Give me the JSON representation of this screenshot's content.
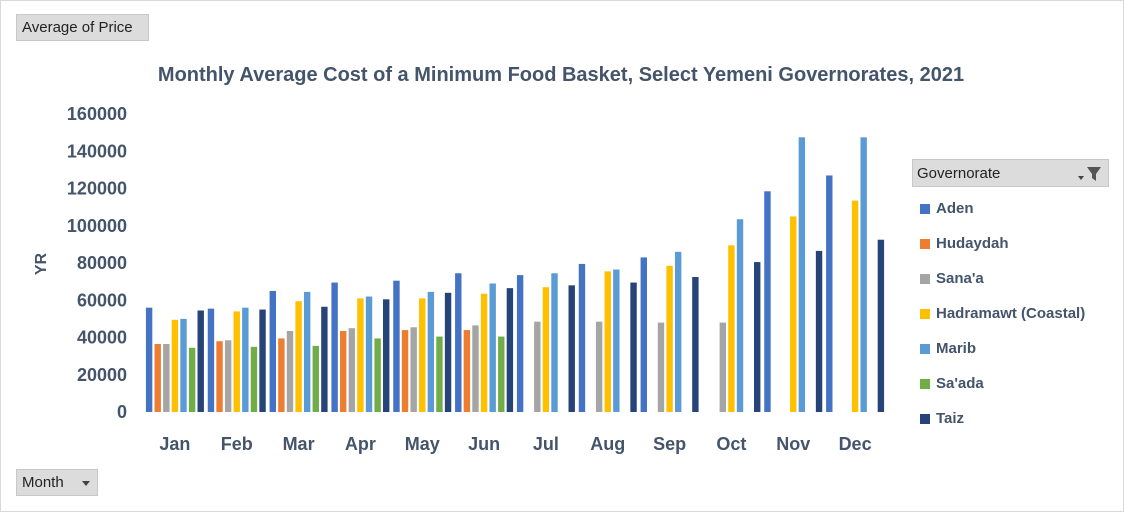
{
  "pivot": {
    "value_field_label": "Average of Price",
    "row_field_label": "Month",
    "legend_field_label": "Governorate"
  },
  "icons": {
    "filter": "filter-funnel-icon",
    "dropdown": "chevron-down-icon"
  },
  "chart_data": {
    "type": "bar",
    "title": "Monthly Average Cost of a Minimum Food Basket, Select Yemeni Governorates, 2021",
    "xlabel": "",
    "ylabel": "YR",
    "ylim": [
      0,
      160000
    ],
    "yticks": [
      "0",
      "20000",
      "40000",
      "60000",
      "80000",
      "100000",
      "120000",
      "140000",
      "160000"
    ],
    "categories": [
      "Jan",
      "Feb",
      "Mar",
      "Apr",
      "May",
      "Jun",
      "Jul",
      "Aug",
      "Sep",
      "Oct",
      "Nov",
      "Dec"
    ],
    "legend_position": "right",
    "grid": false,
    "series": [
      {
        "name": "Aden",
        "color": "#4472c4",
        "values": [
          56000,
          55500,
          65000,
          69500,
          70500,
          74500,
          73500,
          79500,
          83000,
          null,
          118500,
          127000
        ]
      },
      {
        "name": "Hudaydah",
        "color": "#ed7d31",
        "values": [
          36500,
          38000,
          39500,
          43500,
          44000,
          44000,
          null,
          null,
          null,
          null,
          null,
          null
        ]
      },
      {
        "name": "Sana'a",
        "color": "#a5a5a5",
        "values": [
          36500,
          38500,
          43500,
          45000,
          45500,
          46500,
          48500,
          48500,
          48000,
          48000,
          null,
          null
        ]
      },
      {
        "name": "Hadramawt (Coastal)",
        "color": "#ffc000",
        "values": [
          49500,
          54000,
          59500,
          61000,
          61000,
          63500,
          67000,
          75500,
          78500,
          89500,
          105000,
          113500
        ]
      },
      {
        "name": "Marib",
        "color": "#5b9bd5",
        "values": [
          50000,
          56000,
          64500,
          62000,
          64500,
          69000,
          74500,
          76500,
          86000,
          103500,
          147500,
          147500
        ]
      },
      {
        "name": "Sa'ada",
        "color": "#70ad47",
        "values": [
          34500,
          35000,
          35500,
          39500,
          40500,
          40500,
          null,
          null,
          null,
          null,
          null,
          null
        ]
      },
      {
        "name": "Taiz",
        "color": "#264478",
        "values": [
          54500,
          55000,
          56500,
          60500,
          64000,
          66500,
          68000,
          69500,
          72500,
          80500,
          86500,
          92500
        ]
      }
    ]
  }
}
